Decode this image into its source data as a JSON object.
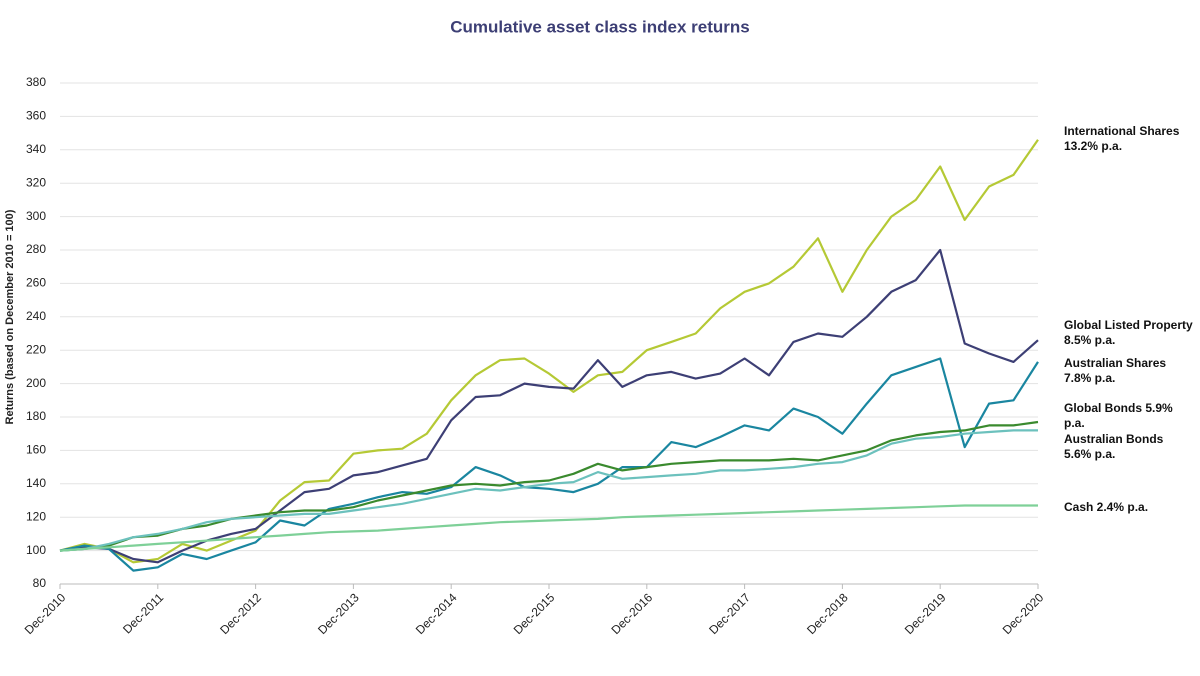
{
  "chart_data": {
    "type": "line",
    "title": "Cumulative asset class index returns",
    "y_label": "Returns (based on December 2010 = 100)",
    "categories": [
      "Dec-2010",
      null,
      null,
      null,
      "Dec-2011",
      null,
      null,
      null,
      "Dec-2012",
      null,
      null,
      null,
      "Dec-2013",
      null,
      null,
      null,
      "Dec-2014",
      null,
      null,
      null,
      "Dec-2015",
      null,
      null,
      null,
      "Dec-2016",
      null,
      null,
      null,
      "Dec-2017",
      null,
      null,
      null,
      "Dec-2018",
      null,
      null,
      null,
      "Dec-2019",
      null,
      null,
      null,
      "Dec-2020"
    ],
    "ylim": [
      80,
      380
    ],
    "yticks": [
      80,
      100,
      120,
      140,
      160,
      180,
      200,
      220,
      240,
      260,
      280,
      300,
      320,
      340,
      360,
      380
    ],
    "grid": true,
    "series": [
      {
        "name": "International Shares 13.2% p.a.",
        "color": "#b5c935",
        "values": [
          100,
          104,
          101,
          93,
          95,
          104,
          100,
          106,
          112,
          130,
          141,
          142,
          158,
          160,
          161,
          170,
          190,
          205,
          214,
          215,
          206,
          195,
          205,
          207,
          220,
          225,
          230,
          245,
          255,
          260,
          270,
          287,
          255,
          280,
          300,
          310,
          330,
          298,
          318,
          325,
          346
        ]
      },
      {
        "name": "Global Listed Property 8.5% p.a.",
        "color": "#3d3f75",
        "values": [
          100,
          102,
          101,
          95,
          93,
          100,
          106,
          110,
          113,
          124,
          135,
          137,
          145,
          147,
          151,
          155,
          178,
          192,
          193,
          200,
          198,
          197,
          214,
          198,
          205,
          207,
          203,
          206,
          215,
          205,
          225,
          230,
          228,
          240,
          255,
          262,
          280,
          224,
          218,
          213,
          226
        ]
      },
      {
        "name": "Australian Shares 7.8% p.a.",
        "color": "#1a86a0",
        "values": [
          100,
          103,
          101,
          88,
          90,
          98,
          95,
          100,
          105,
          118,
          115,
          125,
          128,
          132,
          135,
          134,
          138,
          150,
          145,
          138,
          137,
          135,
          140,
          150,
          150,
          165,
          162,
          168,
          175,
          172,
          185,
          180,
          170,
          188,
          205,
          210,
          215,
          162,
          188,
          190,
          213
        ]
      },
      {
        "name": "Global Bonds 5.9% p.a.",
        "color": "#3a8a2e",
        "values": [
          100,
          101,
          103,
          108,
          109,
          113,
          115,
          119,
          121,
          123,
          124,
          124,
          126,
          130,
          133,
          136,
          139,
          140,
          139,
          141,
          142,
          146,
          152,
          148,
          150,
          152,
          153,
          154,
          154,
          154,
          155,
          154,
          157,
          160,
          166,
          169,
          171,
          172,
          175,
          175,
          177
        ]
      },
      {
        "name": "Australian Bonds 5.6% p.a.",
        "color": "#6cc1bd",
        "values": [
          100,
          101,
          104,
          108,
          110,
          113,
          117,
          119,
          120,
          121,
          122,
          122,
          124,
          126,
          128,
          131,
          134,
          137,
          136,
          138,
          140,
          141,
          147,
          143,
          144,
          145,
          146,
          148,
          148,
          149,
          150,
          152,
          153,
          157,
          164,
          167,
          168,
          170,
          171,
          172,
          172
        ]
      },
      {
        "name": "Cash 2.4% p.a.",
        "color": "#7ed098",
        "values": [
          100,
          101,
          102,
          103,
          104,
          105,
          106,
          107,
          108,
          109,
          110,
          111,
          111.5,
          112,
          113,
          114,
          115,
          116,
          117,
          117.5,
          118,
          118.5,
          119,
          120,
          120.5,
          121,
          121.5,
          122,
          122.5,
          123,
          123.5,
          124,
          124.5,
          125,
          125.5,
          126,
          126.5,
          127,
          127,
          127,
          127
        ]
      }
    ]
  }
}
